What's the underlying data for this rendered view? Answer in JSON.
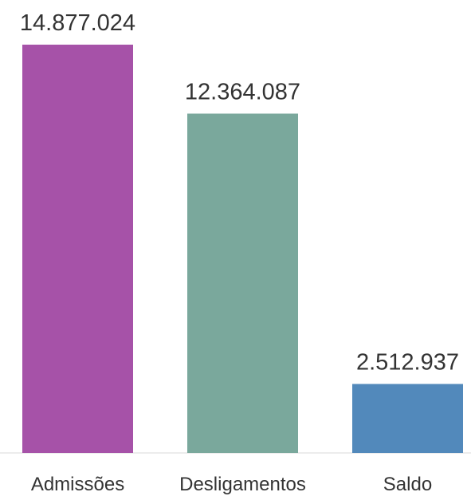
{
  "chart_data": {
    "type": "bar",
    "categories": [
      "Admissões",
      "Desligamentos",
      "Saldo"
    ],
    "values": [
      14877024,
      12364087,
      2512937
    ],
    "value_labels": [
      "14.877.024",
      "12.364.087",
      "2.512.937"
    ],
    "colors": [
      "#a652a8",
      "#7aa89c",
      "#5289bb"
    ]
  }
}
